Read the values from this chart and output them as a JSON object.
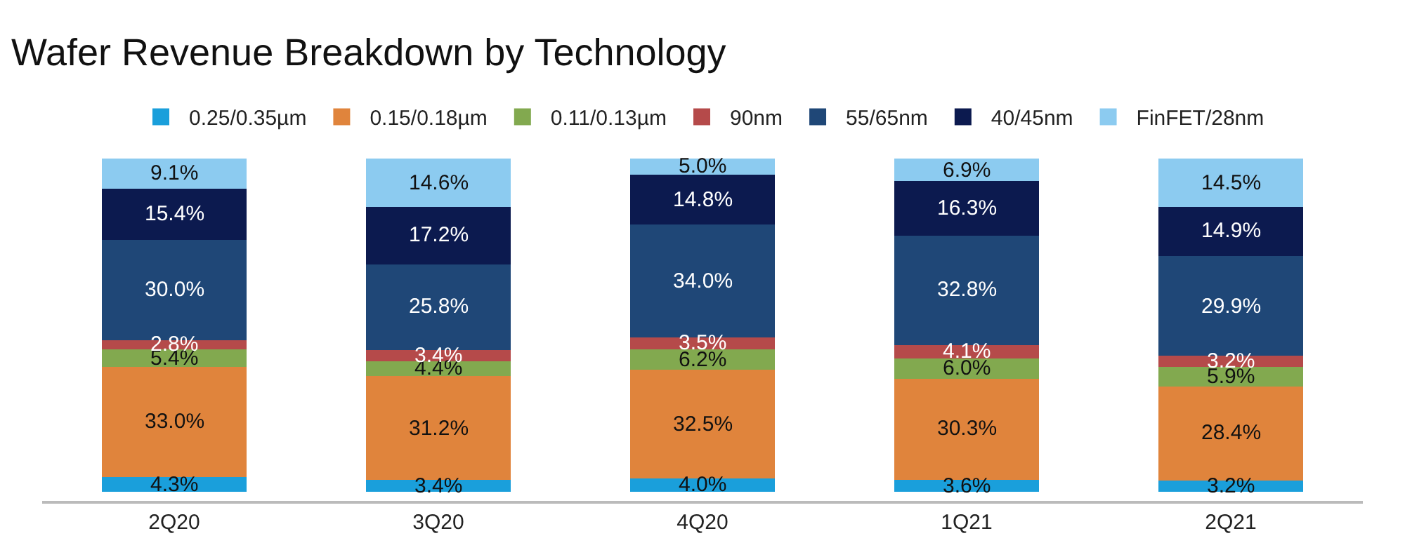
{
  "chart_data": {
    "type": "bar",
    "stacked": true,
    "title": "Wafer Revenue Breakdown by Technology",
    "legend": "top",
    "categories": [
      "2Q20",
      "3Q20",
      "4Q20",
      "1Q21",
      "2Q21"
    ],
    "series": [
      {
        "name": "0.25/0.35µm",
        "color": "#1a9fdb",
        "values": [
          4.3,
          3.4,
          4.0,
          3.6,
          3.2
        ],
        "value_labels": [
          "4.3%",
          "3.4%",
          "4.0%",
          "3.6%",
          "3.2%"
        ]
      },
      {
        "name": "0.15/0.18µm",
        "color": "#e0843c",
        "values": [
          33.0,
          31.2,
          32.5,
          30.3,
          28.4
        ],
        "value_labels": [
          "33.0%",
          "31.2%",
          "32.5%",
          "30.3%",
          "28.4%"
        ]
      },
      {
        "name": "0.11/0.13µm",
        "color": "#82a94f",
        "values": [
          5.4,
          4.4,
          6.2,
          6.0,
          5.9
        ],
        "value_labels": [
          "5.4%",
          "4.4%",
          "6.2%",
          "6.0%",
          "5.9%"
        ]
      },
      {
        "name": "90nm",
        "color": "#b54a4a",
        "values": [
          2.8,
          3.4,
          3.5,
          4.1,
          3.2
        ],
        "value_labels": [
          "2.8%",
          "3.4%",
          "3.5%",
          "4.1%",
          "3.2%"
        ]
      },
      {
        "name": "55/65nm",
        "color": "#1f4777",
        "values": [
          30.0,
          25.8,
          34.0,
          32.8,
          29.9
        ],
        "value_labels": [
          "30.0%",
          "25.8%",
          "34.0%",
          "32.8%",
          "29.9%"
        ]
      },
      {
        "name": "40/45nm",
        "color": "#0c1a4f",
        "values": [
          15.4,
          17.2,
          14.8,
          16.3,
          14.9
        ],
        "value_labels": [
          "15.4%",
          "17.2%",
          "14.8%",
          "16.3%",
          "14.9%"
        ]
      },
      {
        "name": "FinFET/28nm",
        "color": "#8ccbf0",
        "values": [
          9.1,
          14.6,
          5.0,
          6.9,
          14.5
        ],
        "value_labels": [
          "9.1%",
          "14.6%",
          "5.0%",
          "6.9%",
          "14.5%"
        ]
      }
    ]
  }
}
